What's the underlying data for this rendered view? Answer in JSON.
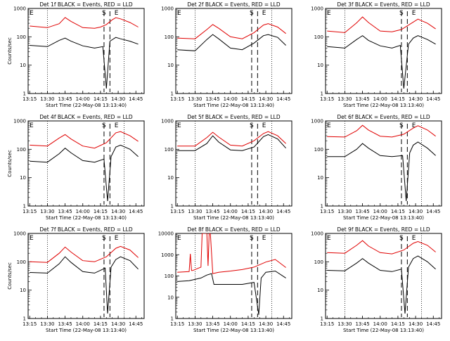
{
  "colors": {
    "events": "#000000",
    "lld": "#e00000",
    "axis": "#000000",
    "background": "#ffffff"
  },
  "chart_data": [
    {
      "type": "line",
      "title": "Det 1f BLACK = Events, RED = LLD",
      "xlabel": "Start Time (22-May-08 13:13:40)",
      "ylabel": "Counts/sec",
      "ylabel_shown": true,
      "x_ticks": [
        "13:15",
        "13:30",
        "13:45",
        "14:00",
        "14:15",
        "14:30",
        "14:45"
      ],
      "y_ticks": [
        "1",
        "10",
        "100",
        "1000"
      ],
      "ylim": [
        1,
        1000
      ],
      "y_scale": "log",
      "markers": {
        "E_left": "E",
        "S": "S",
        "E_right": "E"
      },
      "series": [
        {
          "color": "red",
          "x": [
            "13:15",
            "13:30",
            "13:40",
            "13:45",
            "13:50",
            "14:00",
            "14:10",
            "14:15",
            "14:20",
            "14:25",
            "14:28",
            "14:32",
            "14:40",
            "14:47"
          ],
          "values": [
            240,
            210,
            290,
            480,
            350,
            210,
            200,
            220,
            270,
            400,
            470,
            430,
            320,
            220
          ]
        },
        {
          "color": "black",
          "x": [
            "13:15",
            "13:30",
            "13:40",
            "13:45",
            "13:50",
            "14:00",
            "14:10",
            "14:17",
            "14:20",
            "14:23",
            "14:28",
            "14:32",
            "14:40",
            "14:47"
          ],
          "values": [
            50,
            45,
            75,
            90,
            70,
            48,
            40,
            45,
            1.5,
            70,
            95,
            85,
            70,
            55
          ]
        }
      ]
    },
    {
      "type": "line",
      "title": "Det 2f BLACK = Events, RED = LLD",
      "xlabel": "Start Time (22-May-08 13:13:40)",
      "ylabel": "Counts/sec",
      "ylabel_shown": false,
      "x_ticks": [
        "13:15",
        "13:30",
        "13:45",
        "14:00",
        "14:15",
        "14:30",
        "14:45"
      ],
      "y_ticks": [
        "1",
        "10",
        "100",
        "1000"
      ],
      "ylim": [
        1,
        1000
      ],
      "y_scale": "log",
      "markers": {
        "E_left": "E",
        "S": "S",
        "E_right": "E"
      },
      "series": [
        {
          "color": "red",
          "x": [
            "13:15",
            "13:30",
            "13:40",
            "13:45",
            "13:50",
            "14:00",
            "14:10",
            "14:20",
            "14:28",
            "14:32",
            "14:40",
            "14:47"
          ],
          "values": [
            90,
            85,
            180,
            270,
            200,
            100,
            85,
            140,
            260,
            290,
            220,
            130
          ]
        },
        {
          "color": "black",
          "x": [
            "13:15",
            "13:30",
            "13:40",
            "13:45",
            "13:50",
            "14:00",
            "14:10",
            "14:20",
            "14:28",
            "14:32",
            "14:40",
            "14:47"
          ],
          "values": [
            35,
            32,
            80,
            120,
            85,
            40,
            35,
            60,
            110,
            120,
            95,
            50
          ]
        }
      ]
    },
    {
      "type": "line",
      "title": "Det 3f BLACK = Events, RED = LLD",
      "xlabel": "Start Time (22-May-08 13:13:40)",
      "ylabel": "Counts/sec",
      "ylabel_shown": false,
      "x_ticks": [
        "13:15",
        "13:30",
        "13:45",
        "14:00",
        "14:15",
        "14:30",
        "14:45"
      ],
      "y_ticks": [
        "1",
        "10",
        "100",
        "1000"
      ],
      "ylim": [
        1,
        1000
      ],
      "y_scale": "log",
      "markers": {
        "E_left": "E",
        "S": "S",
        "E_right": "E"
      },
      "series": [
        {
          "color": "red",
          "x": [
            "13:15",
            "13:30",
            "13:40",
            "13:45",
            "13:50",
            "14:00",
            "14:10",
            "14:18",
            "14:28",
            "14:32",
            "14:40",
            "14:47"
          ],
          "values": [
            160,
            140,
            310,
            500,
            320,
            160,
            150,
            180,
            330,
            420,
            300,
            190
          ]
        },
        {
          "color": "black",
          "x": [
            "13:15",
            "13:30",
            "13:40",
            "13:45",
            "13:50",
            "14:00",
            "14:10",
            "14:17",
            "14:20",
            "14:24",
            "14:28",
            "14:32",
            "14:40",
            "14:47"
          ],
          "values": [
            45,
            40,
            80,
            110,
            75,
            48,
            40,
            50,
            1.5,
            55,
            90,
            110,
            80,
            55
          ]
        }
      ]
    },
    {
      "type": "line",
      "title": "Det 4f BLACK = Events, RED = LLD",
      "xlabel": "Start Time (22-May-08 13:13:40)",
      "ylabel": "Counts/sec",
      "ylabel_shown": true,
      "x_ticks": [
        "13:15",
        "13:30",
        "13:45",
        "14:00",
        "14:15",
        "14:30",
        "14:45"
      ],
      "y_ticks": [
        "1",
        "10",
        "100",
        "1000"
      ],
      "ylim": [
        1,
        1000
      ],
      "y_scale": "log",
      "markers": {
        "E_left": "E",
        "S": "S",
        "E_right": "E"
      },
      "series": [
        {
          "color": "red",
          "x": [
            "13:15",
            "13:30",
            "13:40",
            "13:45",
            "13:50",
            "14:00",
            "14:10",
            "14:20",
            "14:28",
            "14:32",
            "14:40",
            "14:47"
          ],
          "values": [
            140,
            130,
            250,
            330,
            230,
            130,
            110,
            170,
            380,
            420,
            300,
            190
          ]
        },
        {
          "color": "black",
          "x": [
            "13:15",
            "13:30",
            "13:40",
            "13:45",
            "13:50",
            "14:00",
            "14:10",
            "14:18",
            "14:21",
            "14:24",
            "14:28",
            "14:32",
            "14:40",
            "14:47"
          ],
          "values": [
            38,
            35,
            70,
            110,
            75,
            40,
            35,
            45,
            1.5,
            55,
            120,
            140,
            100,
            55
          ]
        }
      ]
    },
    {
      "type": "line",
      "title": "Det 5f BLACK = Events, RED = LLD",
      "xlabel": "Start Time (22-May-08 13:13:40)",
      "ylabel": "Counts/sec",
      "ylabel_shown": false,
      "x_ticks": [
        "13:15",
        "13:30",
        "13:45",
        "14:00",
        "14:15",
        "14:30",
        "14:45"
      ],
      "y_ticks": [
        "1",
        "10",
        "100",
        "1000"
      ],
      "ylim": [
        1,
        1000
      ],
      "y_scale": "log",
      "markers": {
        "E_left": "E",
        "S": "S",
        "E_right": "E"
      },
      "series": [
        {
          "color": "red",
          "x": [
            "13:15",
            "13:30",
            "13:40",
            "13:45",
            "13:50",
            "14:00",
            "14:10",
            "14:20",
            "14:28",
            "14:32",
            "14:40",
            "14:47"
          ],
          "values": [
            130,
            130,
            260,
            400,
            270,
            140,
            130,
            200,
            360,
            420,
            300,
            160
          ]
        },
        {
          "color": "black",
          "x": [
            "13:15",
            "13:30",
            "13:40",
            "13:45",
            "13:50",
            "14:00",
            "14:10",
            "14:20",
            "14:28",
            "14:32",
            "14:40",
            "14:47"
          ],
          "values": [
            90,
            90,
            160,
            300,
            180,
            95,
            90,
            120,
            280,
            330,
            230,
            110
          ]
        }
      ]
    },
    {
      "type": "line",
      "title": "Det 6f BLACK = Events, RED = LLD",
      "xlabel": "Start Time (22-May-08 13:13:40)",
      "ylabel": "Counts/sec",
      "ylabel_shown": false,
      "x_ticks": [
        "13:15",
        "13:30",
        "13:45",
        "14:00",
        "14:15",
        "14:30",
        "14:45"
      ],
      "y_ticks": [
        "1",
        "10",
        "100",
        "1000"
      ],
      "ylim": [
        1,
        1000
      ],
      "y_scale": "log",
      "markers": {
        "E_left": "E",
        "S": "S",
        "E_right": "E"
      },
      "series": [
        {
          "color": "red",
          "x": [
            "13:15",
            "13:30",
            "13:40",
            "13:45",
            "13:50",
            "14:00",
            "14:10",
            "14:20",
            "14:28",
            "14:32",
            "14:40",
            "14:47"
          ],
          "values": [
            280,
            270,
            450,
            700,
            480,
            290,
            270,
            340,
            560,
            680,
            480,
            290
          ]
        },
        {
          "color": "black",
          "x": [
            "13:15",
            "13:30",
            "13:40",
            "13:45",
            "13:50",
            "14:00",
            "14:10",
            "14:19",
            "14:22",
            "14:25",
            "14:28",
            "14:32",
            "14:40",
            "14:47"
          ],
          "values": [
            55,
            55,
            100,
            160,
            110,
            60,
            55,
            60,
            1.5,
            75,
            140,
            180,
            110,
            60
          ]
        }
      ]
    },
    {
      "type": "line",
      "title": "Det 7f BLACK = Events, RED = LLD",
      "xlabel": "Start Time (22-May-08 13:13:40)",
      "ylabel": "Counts/sec",
      "ylabel_shown": true,
      "x_ticks": [
        "13:15",
        "13:30",
        "13:45",
        "14:00",
        "14:15",
        "14:30",
        "14:45"
      ],
      "y_ticks": [
        "1",
        "10",
        "100",
        "1000"
      ],
      "ylim": [
        1,
        1000
      ],
      "y_scale": "log",
      "markers": {
        "E_left": "E",
        "S": "S",
        "E_right": "E"
      },
      "series": [
        {
          "color": "red",
          "x": [
            "13:15",
            "13:30",
            "13:40",
            "13:45",
            "13:50",
            "14:00",
            "14:10",
            "14:20",
            "14:28",
            "14:32",
            "14:40",
            "14:47"
          ],
          "values": [
            100,
            95,
            200,
            330,
            220,
            110,
            100,
            150,
            300,
            350,
            260,
            140
          ]
        },
        {
          "color": "black",
          "x": [
            "13:15",
            "13:30",
            "13:40",
            "13:45",
            "13:50",
            "14:00",
            "14:10",
            "14:19",
            "14:21",
            "14:24",
            "14:28",
            "14:32",
            "14:40",
            "14:47"
          ],
          "values": [
            42,
            40,
            85,
            150,
            95,
            45,
            40,
            60,
            1.5,
            65,
            120,
            150,
            110,
            55
          ]
        }
      ]
    },
    {
      "type": "line",
      "title": "Det 8f BLACK = Events, RED = LLD",
      "xlabel": "Start Time (22-May-08 13:13:40)",
      "ylabel": "Counts/sec",
      "ylabel_shown": false,
      "x_ticks": [
        "13:15",
        "13:30",
        "13:45",
        "14:00",
        "14:15",
        "14:30",
        "14:45"
      ],
      "y_ticks": [
        "1",
        "10",
        "100",
        "1000",
        "10000"
      ],
      "ylim": [
        1,
        10000
      ],
      "y_scale": "log",
      "markers": {
        "E_left": "E",
        "S": "S",
        "E_right": "E"
      },
      "series": [
        {
          "color": "red",
          "x": [
            "13:15",
            "13:25",
            "13:26",
            "13:27",
            "13:28",
            "13:35",
            "13:36",
            "13:40",
            "13:41",
            "13:42",
            "13:43",
            "13:45",
            "13:50",
            "14:00",
            "14:10",
            "14:20",
            "14:30",
            "14:38",
            "14:47"
          ],
          "values": [
            150,
            160,
            1100,
            180,
            180,
            260,
            10000,
            10000,
            300,
            10000,
            10000,
            130,
            150,
            170,
            200,
            260,
            450,
            600,
            250
          ]
        },
        {
          "color": "black",
          "x": [
            "13:15",
            "13:25",
            "13:35",
            "13:40",
            "13:44",
            "13:46",
            "14:00",
            "14:10",
            "14:20",
            "14:24",
            "14:26",
            "14:30",
            "14:38",
            "14:47"
          ],
          "values": [
            55,
            60,
            80,
            110,
            130,
            40,
            40,
            40,
            50,
            1.5,
            80,
            150,
            170,
            80
          ]
        }
      ]
    },
    {
      "type": "line",
      "title": "Det 9f BLACK = Events, RED = LLD",
      "xlabel": "Start Time (22-May-08 13:13:40)",
      "ylabel": "Counts/sec",
      "ylabel_shown": false,
      "x_ticks": [
        "13:15",
        "13:30",
        "13:45",
        "14:00",
        "14:15",
        "14:30",
        "14:45"
      ],
      "y_ticks": [
        "1",
        "10",
        "100",
        "1000"
      ],
      "ylim": [
        1,
        1000
      ],
      "y_scale": "log",
      "markers": {
        "E_left": "E",
        "S": "S",
        "E_right": "E"
      },
      "series": [
        {
          "color": "red",
          "x": [
            "13:15",
            "13:30",
            "13:40",
            "13:45",
            "13:50",
            "14:00",
            "14:10",
            "14:20",
            "14:28",
            "14:32",
            "14:40",
            "14:47"
          ],
          "values": [
            210,
            200,
            380,
            560,
            360,
            210,
            190,
            260,
            450,
            520,
            380,
            220
          ]
        },
        {
          "color": "black",
          "x": [
            "13:15",
            "13:30",
            "13:40",
            "13:45",
            "13:50",
            "14:00",
            "14:10",
            "14:18",
            "14:21",
            "14:24",
            "14:28",
            "14:32",
            "14:40",
            "14:47"
          ],
          "values": [
            50,
            48,
            90,
            130,
            90,
            50,
            45,
            55,
            1.5,
            65,
            130,
            160,
            100,
            55
          ]
        }
      ]
    }
  ]
}
